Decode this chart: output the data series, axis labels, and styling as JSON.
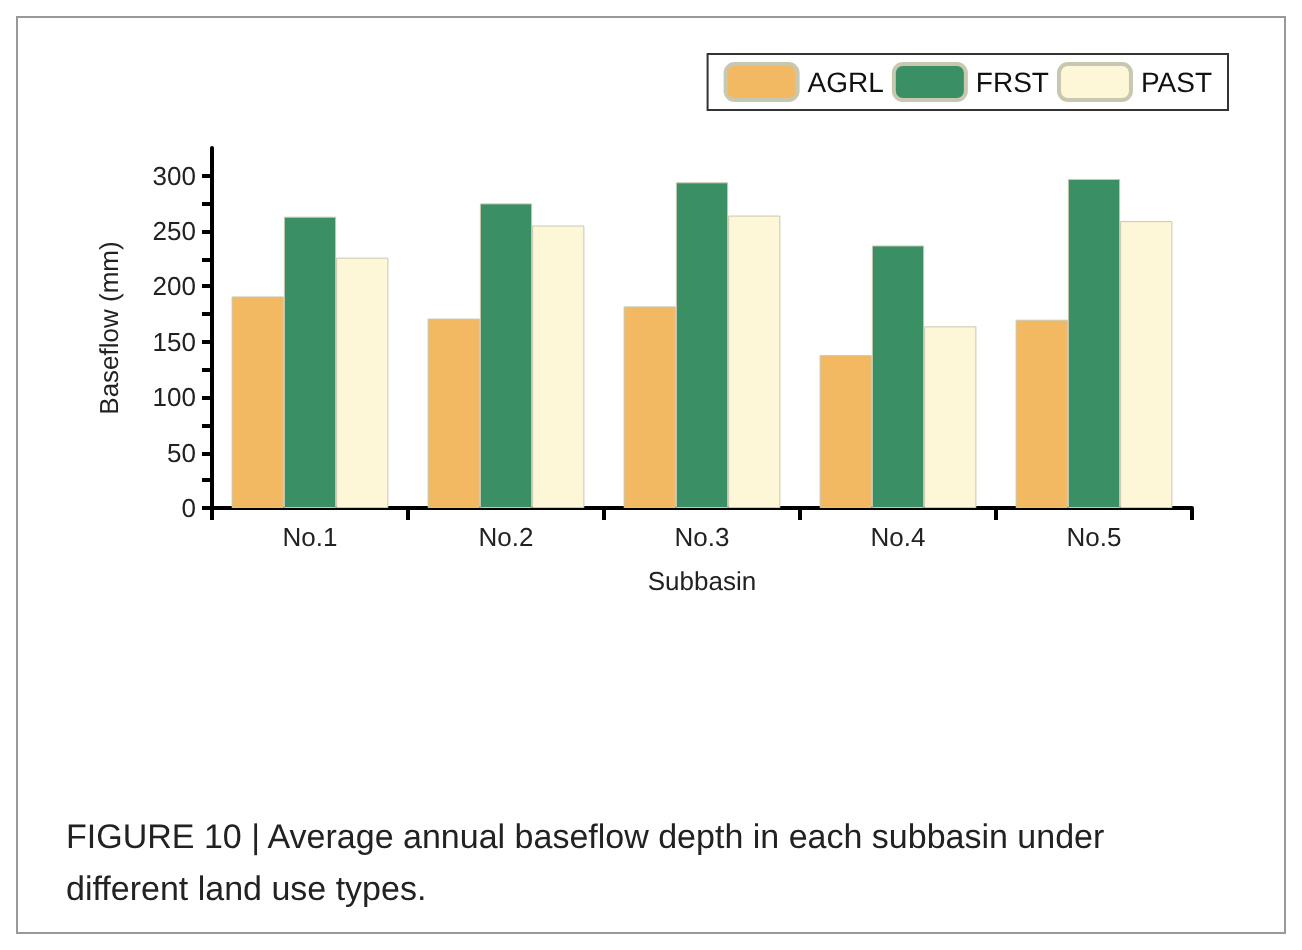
{
  "chart_data": {
    "type": "bar",
    "xlabel": "Subbasin",
    "ylabel": "Baseflow (mm)",
    "categories": [
      "No.1",
      "No.2",
      "No.3",
      "No.4",
      "No.5"
    ],
    "series": [
      {
        "name": "AGRL",
        "color": "#f3b862",
        "values": [
          191,
          171,
          182,
          138,
          170
        ]
      },
      {
        "name": "FRST",
        "color": "#3b8f65",
        "values": [
          263,
          275,
          294,
          237,
          297
        ]
      },
      {
        "name": "PAST",
        "color": "#fdf7d8",
        "values": [
          226,
          255,
          264,
          164,
          259
        ]
      }
    ],
    "ylim": [
      0,
      325
    ],
    "yticks": [
      0,
      {
        "value": 25,
        "label": null
      },
      50,
      {
        "value": 75,
        "label": null
      },
      100,
      {
        "value": 125,
        "label": null
      },
      150,
      {
        "value": 175,
        "label": null
      },
      200,
      {
        "value": 225,
        "label": null
      },
      250,
      {
        "value": 275,
        "label": null
      },
      300
    ],
    "grid": false,
    "legend": "top right",
    "annotations": [
      "FIGURE 10 | Average annual baseflow depth in each subbasin under different land use types."
    ]
  }
}
